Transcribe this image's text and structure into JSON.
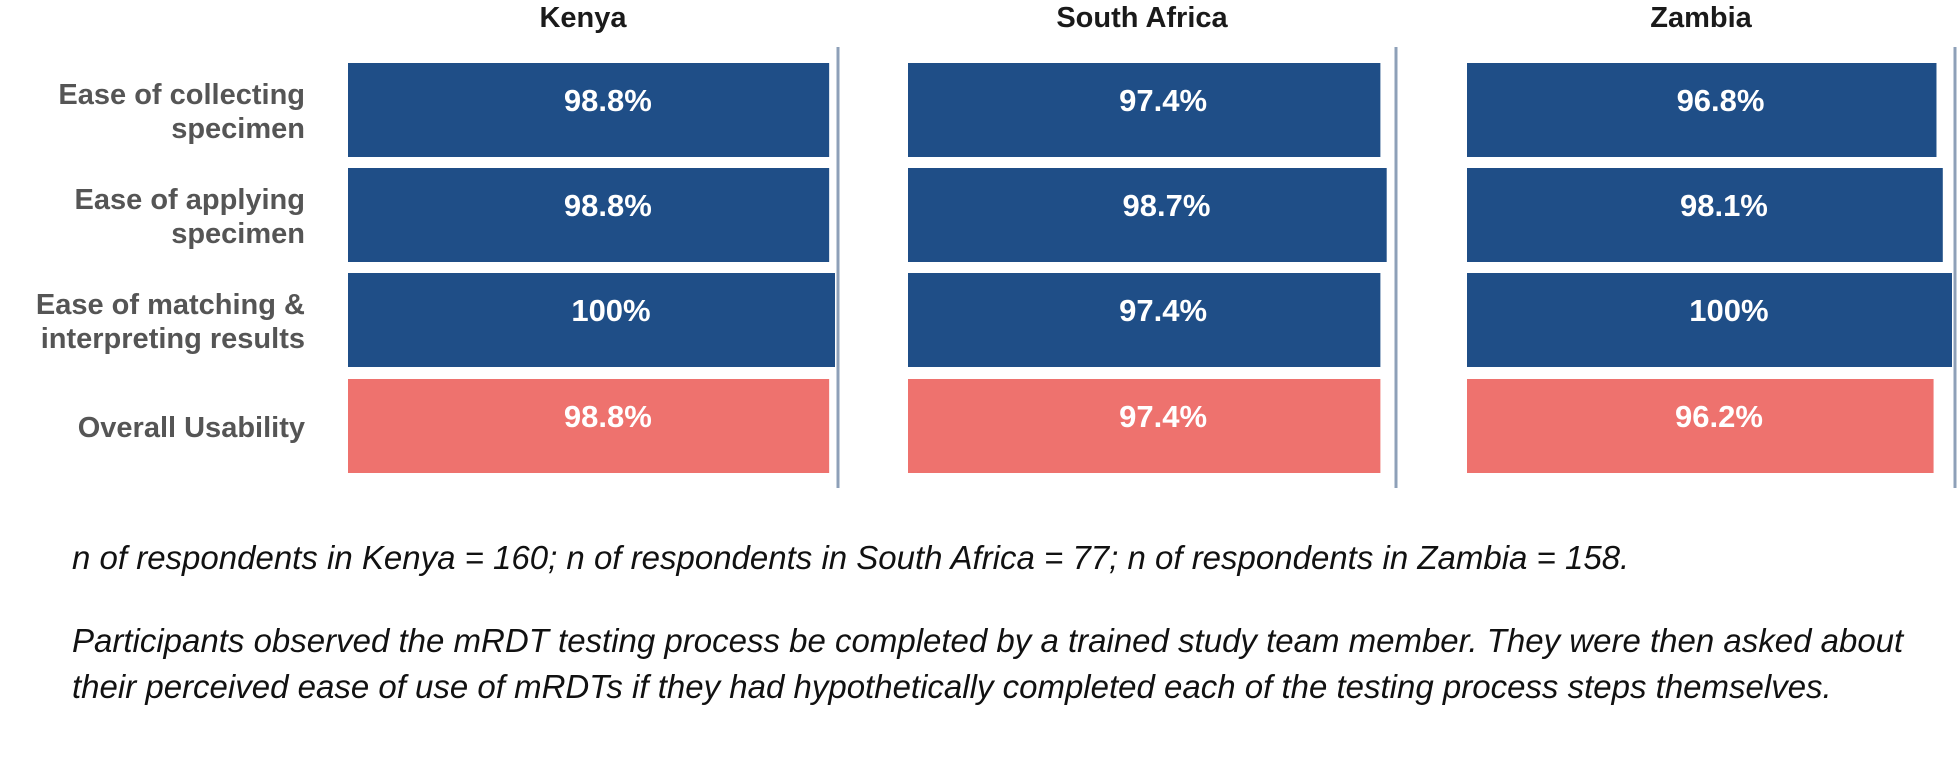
{
  "chart_data": [
    {
      "type": "bar",
      "title": "Kenya",
      "categories": [
        "Ease of collecting specimen",
        "Ease of applying specimen",
        "Ease of matching & interpreting results",
        "Overall Usability"
      ],
      "values": [
        98.8,
        98.8,
        100,
        98.8
      ],
      "labels": [
        "98.8%",
        "98.8%",
        "100%",
        "98.8%"
      ],
      "xlim": [
        0,
        100
      ]
    },
    {
      "type": "bar",
      "title": "South Africa",
      "categories": [
        "Ease of collecting specimen",
        "Ease of applying specimen",
        "Ease of matching & interpreting results",
        "Overall Usability"
      ],
      "values": [
        97.4,
        98.7,
        97.4,
        97.4
      ],
      "labels": [
        "97.4%",
        "98.7%",
        "97.4%",
        "97.4%"
      ],
      "xlim": [
        0,
        100
      ]
    },
    {
      "type": "bar",
      "title": "Zambia",
      "categories": [
        "Ease of collecting specimen",
        "Ease of applying specimen",
        "Ease of matching & interpreting results",
        "Overall Usability"
      ],
      "values": [
        96.8,
        98.1,
        100,
        96.2
      ],
      "labels": [
        "96.8%",
        "98.1%",
        "100%",
        "96.2%"
      ],
      "xlim": [
        0,
        100
      ]
    }
  ],
  "row_labels": [
    [
      "Ease of collecting",
      "specimen"
    ],
    [
      "Ease of applying",
      "specimen"
    ],
    [
      "Ease of matching &",
      "interpreting results"
    ],
    [
      "Overall Usability"
    ]
  ],
  "colors": {
    "component": "#1f4e87",
    "overall": "#ee726e",
    "axis": "#8ea0b8",
    "row_label": "#555555"
  },
  "footnotes": {
    "respondents": "n of respondents in Kenya = 160; n of respondents in South Africa = 77; n of respondents in Zambia = 158.",
    "method": "Participants observed the mRDT testing process be completed by a trained study team member. They were then asked about their perceived ease of use of mRDTs if they had hypothetically completed each of the testing process steps themselves."
  }
}
